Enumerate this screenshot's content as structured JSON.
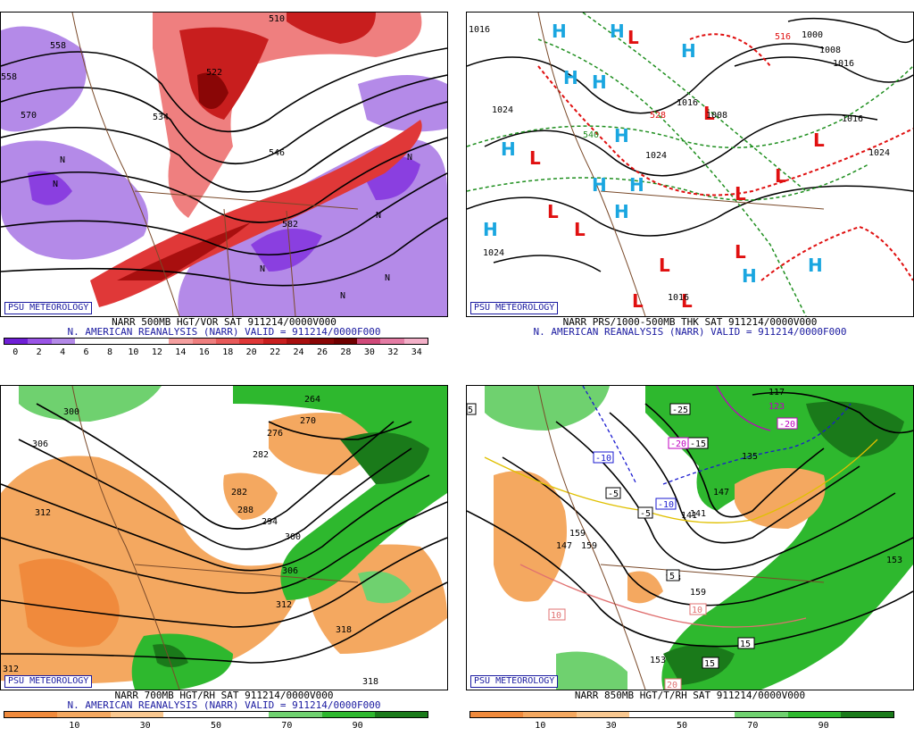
{
  "badge": "PSU METEOROLOGY",
  "panels": {
    "tl": {
      "line1": "NARR 500MB HGT/VOR SAT 911214/0000V000",
      "line2": "N. AMERICAN REANALYSIS (NARR) VALID = 911214/0000F000",
      "scale": [
        "0",
        "2",
        "4",
        "6",
        "8",
        "10",
        "12",
        "14",
        "16",
        "18",
        "20",
        "22",
        "24",
        "26",
        "28",
        "30",
        "32",
        "34"
      ],
      "scale_colors": [
        "#6f1fd6",
        "#9a55e6",
        "#b48ae8",
        "#ffffff",
        "#ffffff",
        "#ffffff",
        "#ffffff",
        "#f5a0a0",
        "#ef7f7f",
        "#e85a5a",
        "#e03838",
        "#c81e1e",
        "#a80f0f",
        "#8a0606",
        "#700000",
        "#d04a7a",
        "#e47ca4",
        "#f3b0c8"
      ],
      "contour_labels": [
        "510",
        "558",
        "558",
        "570",
        "522",
        "534",
        "546",
        "582",
        "N",
        "N",
        "N",
        "N",
        "N",
        "N",
        "N"
      ]
    },
    "tr": {
      "line1": "NARR PRS/1000-500MB THK SAT 911214/0000V000",
      "line2": "N. AMERICAN REANALYSIS (NARR) VALID = 911214/0000F000",
      "contour_labels": [
        "1016",
        "1024",
        "1024",
        "1016",
        "1024",
        "1008",
        "1016",
        "1016",
        "1024",
        "1000",
        "1008",
        "1016",
        "516",
        "528",
        "540"
      ],
      "highs": "H",
      "lows": "L"
    },
    "bl": {
      "line1": "NARR 700MB HGT/RH SAT 911214/0000V000",
      "line2": "N. AMERICAN REANALYSIS (NARR) VALID = 911214/0000F000",
      "scale": [
        "10",
        "30",
        "50",
        "70",
        "90"
      ],
      "scale_colors": [
        "#f08a3c",
        "#f4a860",
        "#f9c890",
        "#ffffff",
        "#ffffff",
        "#6fd16f",
        "#2eb82e",
        "#1a7a1a"
      ],
      "contour_labels": [
        "300",
        "306",
        "312",
        "264",
        "270",
        "276",
        "282",
        "288",
        "282",
        "294",
        "300",
        "306",
        "312",
        "318",
        "318",
        "312"
      ]
    },
    "br": {
      "line1": "NARR 850MB HGT/T/RH SAT 911214/0000V000",
      "scale": [
        "10",
        "30",
        "50",
        "70",
        "90"
      ],
      "scale_colors": [
        "#f08a3c",
        "#f4a860",
        "#f9c890",
        "#ffffff",
        "#ffffff",
        "#6fd16f",
        "#2eb82e",
        "#1a7a1a"
      ],
      "contour_labels": [
        "135",
        "141",
        "147",
        "153",
        "159",
        "159",
        "153",
        "147",
        "141",
        "153",
        "159",
        "117",
        "123"
      ],
      "temp_labels": [
        "-25",
        "-20",
        "-15",
        "-20",
        "-10",
        "-5",
        "-5",
        "-10",
        "5",
        "10",
        "10",
        "15",
        "15",
        "20",
        "5"
      ]
    }
  }
}
